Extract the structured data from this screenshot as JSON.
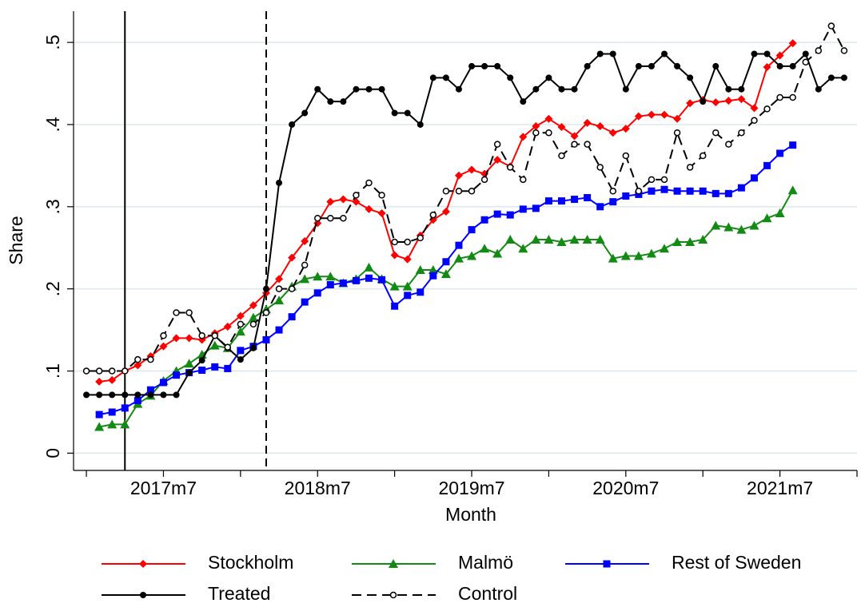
{
  "chart_data": {
    "type": "line",
    "ylabel": "Share",
    "xlabel": "Month",
    "x": [
      684,
      685,
      686,
      687,
      688,
      689,
      690,
      691,
      692,
      693,
      694,
      695,
      696,
      697,
      698,
      699,
      700,
      701,
      702,
      703,
      704,
      705,
      706,
      707,
      708,
      709,
      710,
      711,
      712,
      713,
      714,
      715,
      716,
      717,
      718,
      719,
      720,
      721,
      722,
      723,
      724,
      725,
      726,
      727,
      728,
      729,
      730,
      731,
      732,
      733,
      734,
      735,
      736,
      737,
      738,
      739,
      740,
      741,
      742,
      743
    ],
    "xlim": [
      683,
      744
    ],
    "xticks": [
      {
        "value": 690,
        "label": "2017m7"
      },
      {
        "value": 702,
        "label": "2018m7"
      },
      {
        "value": 714,
        "label": "2019m7"
      },
      {
        "value": 726,
        "label": "2020m7"
      },
      {
        "value": 738,
        "label": "2021m7"
      }
    ],
    "xminorticks": [
      684,
      696,
      708,
      720,
      732,
      744
    ],
    "ylim": [
      -0.021,
      0.538
    ],
    "yticks": [
      0,
      {
        "value": 0.1,
        "label": ".1"
      },
      {
        "value": 0.2,
        "label": ".2"
      },
      {
        "value": 0.3,
        "label": ".3"
      },
      {
        "value": 0.4,
        "label": ".4"
      },
      {
        "value": 0.5,
        "label": ".5"
      }
    ],
    "grid": true,
    "vlines": [
      {
        "value": 687,
        "style": "solid"
      },
      {
        "value": 698,
        "style": "dashed"
      }
    ],
    "series": [
      {
        "name": "Stockholm",
        "color": "#ff0000",
        "marker": "diamond",
        "dash": "solid",
        "values": [
          null,
          0.087,
          0.089,
          0.1,
          0.107,
          0.118,
          0.13,
          0.14,
          0.14,
          0.138,
          0.146,
          0.154,
          0.167,
          0.18,
          0.195,
          0.212,
          0.238,
          0.258,
          0.28,
          0.306,
          0.309,
          0.306,
          0.297,
          0.292,
          0.241,
          0.236,
          0.265,
          0.284,
          0.294,
          0.338,
          0.345,
          0.34,
          0.357,
          0.349,
          0.385,
          0.398,
          0.407,
          0.397,
          0.386,
          0.402,
          0.398,
          0.39,
          0.395,
          0.41,
          0.412,
          0.412,
          0.407,
          0.426,
          0.43,
          0.427,
          0.429,
          0.431,
          0.42,
          0.47,
          0.484,
          0.499,
          null,
          null,
          null,
          null
        ]
      },
      {
        "name": "Malmö",
        "color": "#138a13",
        "marker": "triangle",
        "dash": "solid",
        "values": [
          null,
          0.032,
          0.035,
          0.035,
          0.06,
          0.07,
          0.088,
          0.1,
          0.109,
          0.12,
          0.131,
          0.128,
          0.148,
          0.165,
          0.175,
          0.186,
          0.203,
          0.212,
          0.215,
          0.215,
          0.207,
          0.212,
          0.226,
          0.212,
          0.203,
          0.203,
          0.223,
          0.223,
          0.218,
          0.237,
          0.24,
          0.249,
          0.243,
          0.26,
          0.249,
          0.26,
          0.26,
          0.257,
          0.26,
          0.26,
          0.26,
          0.237,
          0.24,
          0.24,
          0.243,
          0.249,
          0.257,
          0.257,
          0.26,
          0.277,
          0.275,
          0.272,
          0.277,
          0.286,
          0.292,
          0.32,
          null,
          null,
          null,
          null
        ]
      },
      {
        "name": "Rest of Sweden",
        "color": "#0000ff",
        "marker": "square",
        "dash": "solid",
        "values": [
          null,
          0.047,
          0.05,
          0.055,
          0.064,
          0.077,
          0.086,
          0.095,
          0.098,
          0.101,
          0.105,
          0.103,
          0.125,
          0.13,
          0.138,
          0.15,
          0.166,
          0.184,
          0.195,
          0.205,
          0.207,
          0.21,
          0.213,
          0.211,
          0.179,
          0.192,
          0.196,
          0.216,
          0.233,
          0.253,
          0.272,
          0.284,
          0.291,
          0.29,
          0.297,
          0.298,
          0.307,
          0.307,
          0.309,
          0.311,
          0.3,
          0.306,
          0.313,
          0.315,
          0.319,
          0.321,
          0.319,
          0.319,
          0.319,
          0.316,
          0.316,
          0.323,
          0.335,
          0.35,
          0.365,
          0.375,
          null,
          null,
          null,
          null
        ]
      },
      {
        "name": "Treated",
        "color": "#000000",
        "marker": "circle",
        "dash": "solid",
        "values": [
          0.071,
          0.071,
          0.071,
          0.071,
          0.071,
          0.071,
          0.071,
          0.071,
          0.098,
          0.113,
          0.143,
          0.128,
          0.114,
          0.128,
          0.2,
          0.329,
          0.4,
          0.414,
          0.443,
          0.428,
          0.428,
          0.443,
          0.443,
          0.443,
          0.414,
          0.414,
          0.4,
          0.457,
          0.457,
          0.443,
          0.471,
          0.471,
          0.471,
          0.457,
          0.428,
          0.443,
          0.457,
          0.443,
          0.443,
          0.471,
          0.486,
          0.486,
          0.443,
          0.471,
          0.471,
          0.486,
          0.471,
          0.457,
          0.428,
          0.471,
          0.443,
          0.443,
          0.486,
          0.486,
          0.471,
          0.471,
          0.486,
          0.443,
          0.457,
          0.457
        ]
      },
      {
        "name": "Control",
        "color": "#000000",
        "marker": "circle-open",
        "dash": "dashed",
        "values": [
          0.1,
          0.1,
          0.1,
          0.1,
          0.114,
          0.114,
          0.143,
          0.171,
          0.171,
          0.143,
          0.143,
          0.129,
          0.157,
          0.157,
          0.171,
          0.2,
          0.2,
          0.229,
          0.286,
          0.286,
          0.286,
          0.314,
          0.329,
          0.314,
          0.257,
          0.257,
          0.262,
          0.29,
          0.319,
          0.319,
          0.319,
          0.333,
          0.376,
          0.348,
          0.333,
          0.39,
          0.39,
          0.362,
          0.376,
          0.376,
          0.348,
          0.319,
          0.362,
          0.319,
          0.333,
          0.333,
          0.39,
          0.348,
          0.362,
          0.39,
          0.376,
          0.39,
          0.405,
          0.419,
          0.433,
          0.433,
          0.476,
          0.49,
          0.52,
          0.49
        ]
      }
    ]
  }
}
